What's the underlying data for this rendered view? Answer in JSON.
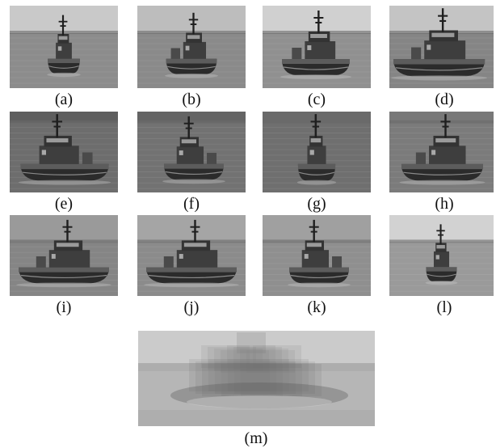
{
  "figure": {
    "panels": [
      {
        "label": "(a)",
        "view": "front"
      },
      {
        "label": "(b)",
        "view": "front-right"
      },
      {
        "label": "(c)",
        "view": "right-quarter"
      },
      {
        "label": "(d)",
        "view": "right-side"
      },
      {
        "label": "(e)",
        "view": "left-side"
      },
      {
        "label": "(f)",
        "view": "left-quarter"
      },
      {
        "label": "(g)",
        "view": "rear"
      },
      {
        "label": "(h)",
        "view": "right-quarter-rear"
      },
      {
        "label": "(i)",
        "view": "side"
      },
      {
        "label": "(j)",
        "view": "side"
      },
      {
        "label": "(k)",
        "view": "left-quarter"
      },
      {
        "label": "(l)",
        "view": "front"
      },
      {
        "label": "(m)",
        "view": "blurred-average"
      }
    ]
  }
}
